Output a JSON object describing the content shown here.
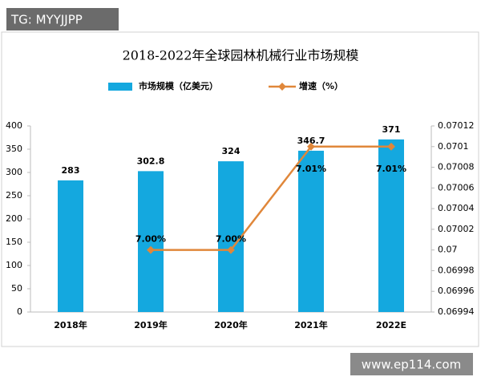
{
  "watermarks": [
    "TG: MYYJJPP",
    "www.ep114.com"
  ],
  "chart_data": {
    "type": "bar",
    "title": "2018-2022年全球园林机械行业市场规模",
    "categories": [
      "2018年",
      "2019年",
      "2020年",
      "2021年",
      "2022E"
    ],
    "series": [
      {
        "name": "市场规模（亿美元）",
        "type": "bar",
        "color": "#14a8df",
        "values": [
          283,
          302.8,
          324,
          346.7,
          371
        ]
      },
      {
        "name": "增速（%）",
        "type": "line",
        "axis": "y2",
        "color": "#e0873a",
        "values": [
          null,
          0.07,
          0.07,
          0.0701,
          0.0701
        ],
        "value_labels": [
          null,
          "7.00%",
          "7.00%",
          "7.01%",
          "7.01%"
        ]
      }
    ],
    "ylim": [
      0,
      400
    ],
    "yticks": [
      0,
      50,
      100,
      150,
      200,
      250,
      300,
      350,
      400
    ],
    "y2lim": [
      0.06994,
      0.07012
    ],
    "y2ticks": [
      0.06994,
      0.06996,
      0.06998,
      0.07,
      0.07002,
      0.07004,
      0.07006,
      0.07008,
      0.0701,
      0.07012
    ],
    "grid": false
  }
}
